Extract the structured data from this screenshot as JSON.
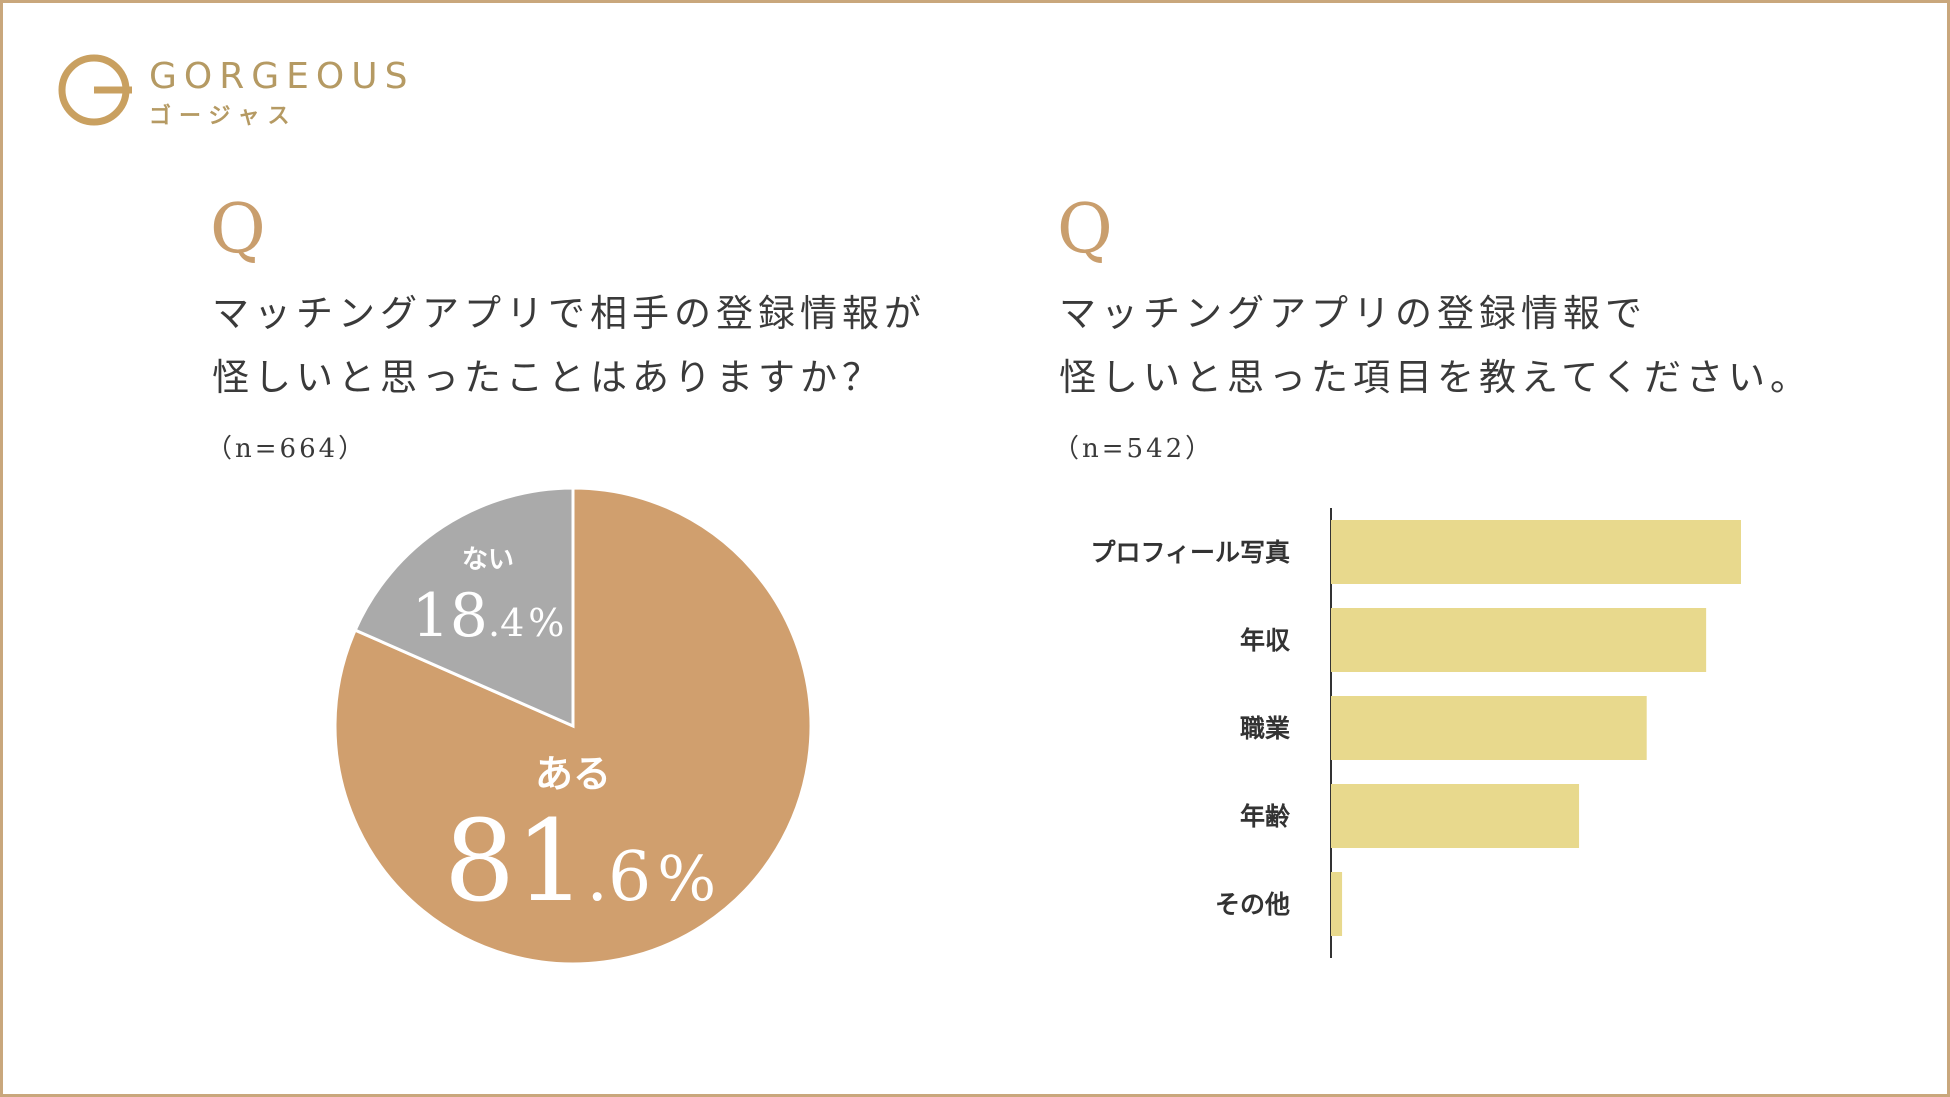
{
  "brand": {
    "name": "GORGEOUS",
    "kana": "ゴージャス"
  },
  "left": {
    "q_mark": "Q",
    "question_lines": [
      "マッチングアプリで相手の登録情報が",
      "怪しいと思ったことはありますか？"
    ],
    "sample": "（n=664）"
  },
  "right": {
    "q_mark": "Q",
    "question_lines": [
      "マッチングアプリの登録情報で",
      "怪しいと思った項目を教えてください。"
    ],
    "sample": "（n=542）"
  },
  "colors": {
    "accent": "#c99e6d",
    "pie_yes": "#d09f6e",
    "pie_no": "#aaaaaa",
    "bar": "#e8d98d",
    "axis": "#333333",
    "border": "#c9a77c"
  },
  "chart_data": [
    {
      "type": "pie",
      "slices": [
        {
          "label": "ある",
          "value": 81.6,
          "int_part": "81",
          "dec_part": ".6",
          "unit": "%"
        },
        {
          "label": "ない",
          "value": 18.4,
          "int_part": "18",
          "dec_part": ".4",
          "unit": "%"
        }
      ]
    },
    {
      "type": "bar",
      "orientation": "horizontal",
      "categories": [
        "プロフィール写真",
        "年収",
        "職業",
        "年齢",
        "その他"
      ],
      "values": [
        100,
        91.5,
        77,
        60.5,
        2.7
      ],
      "xlim": [
        0,
        100
      ],
      "grid": false
    }
  ]
}
